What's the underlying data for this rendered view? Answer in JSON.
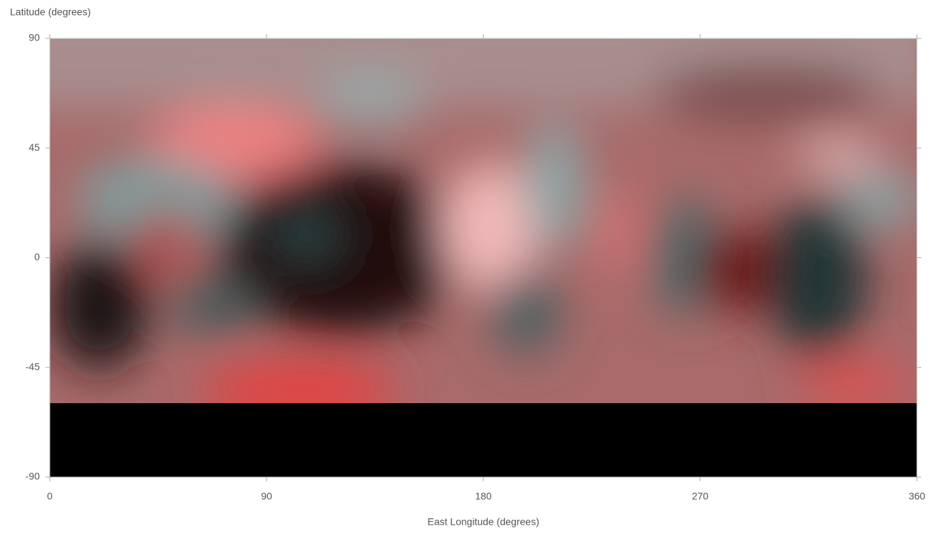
{
  "chart_data": {
    "type": "image",
    "x_label": "East Longitude (degrees)",
    "y_label": "Latitude (degrees)",
    "xlim": [
      0,
      360
    ],
    "xticks": [
      0,
      90,
      180,
      270,
      360
    ],
    "ylim": [
      -90,
      90
    ],
    "yticks": [
      -90,
      -45,
      0,
      45,
      90
    ]
  }
}
